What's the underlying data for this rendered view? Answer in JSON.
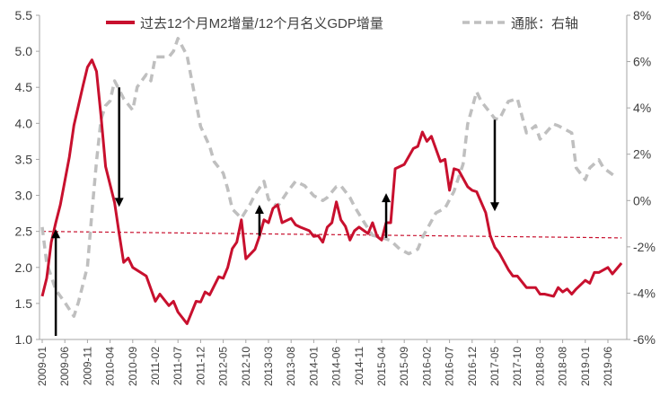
{
  "chart_data": {
    "type": "line",
    "title": "",
    "xlabel": "",
    "ylabel": "",
    "legend_position": "top",
    "grid": false,
    "colors": {
      "m2_ratio": "#c8102e",
      "inflation": "#bfbfbf",
      "arrows": "#000000",
      "reference_line": "#c8102e"
    },
    "x_range": [
      "2009-01",
      "2019-09"
    ],
    "x_tick_labels": [
      "2009-01",
      "2009-06",
      "2009-11",
      "2010-04",
      "2010-09",
      "2011-02",
      "2011-07",
      "2011-12",
      "2012-05",
      "2012-10",
      "2013-03",
      "2013-08",
      "2014-01",
      "2014-06",
      "2014-11",
      "2015-04",
      "2015-09",
      "2016-02",
      "2016-07",
      "2016-12",
      "2017-05",
      "2017-10",
      "2018-03",
      "2018-08",
      "2019-01",
      "2019-06"
    ],
    "left_axis": {
      "range": [
        1.0,
        5.5
      ],
      "tick_labels": [
        "1.0",
        "1.5",
        "2.0",
        "2.5",
        "3.0",
        "3.5",
        "4.0",
        "4.5",
        "5.0",
        "5.5"
      ]
    },
    "right_axis": {
      "range": [
        -6,
        8
      ],
      "tick_labels": [
        "-6%",
        "-4%",
        "-2%",
        "0%",
        "2%",
        "4%",
        "6%",
        "8%"
      ]
    },
    "series": [
      {
        "name": "过去12个月M2增量/12个月名义GDP增量",
        "axis": "left",
        "style": "solid",
        "points": [
          [
            "2009-01",
            1.6
          ],
          [
            "2009-02",
            1.85
          ],
          [
            "2009-03",
            2.35
          ],
          [
            "2009-04",
            2.62
          ],
          [
            "2009-05",
            2.87
          ],
          [
            "2009-07",
            3.53
          ],
          [
            "2009-08",
            3.97
          ],
          [
            "2009-10",
            4.52
          ],
          [
            "2009-11",
            4.78
          ],
          [
            "2009-12",
            4.88
          ],
          [
            "2010-01",
            4.72
          ],
          [
            "2010-02",
            4.1
          ],
          [
            "2010-03",
            3.4
          ],
          [
            "2010-05",
            2.9
          ],
          [
            "2010-06",
            2.47
          ],
          [
            "2010-07",
            2.07
          ],
          [
            "2010-08",
            2.13
          ],
          [
            "2010-09",
            2.0
          ],
          [
            "2010-12",
            1.88
          ],
          [
            "2011-02",
            1.53
          ],
          [
            "2011-03",
            1.63
          ],
          [
            "2011-05",
            1.47
          ],
          [
            "2011-06",
            1.53
          ],
          [
            "2011-07",
            1.38
          ],
          [
            "2011-09",
            1.22
          ],
          [
            "2011-11",
            1.53
          ],
          [
            "2011-12",
            1.52
          ],
          [
            "2012-01",
            1.66
          ],
          [
            "2012-02",
            1.62
          ],
          [
            "2012-04",
            1.87
          ],
          [
            "2012-05",
            1.85
          ],
          [
            "2012-06",
            2.0
          ],
          [
            "2012-07",
            2.26
          ],
          [
            "2012-08",
            2.35
          ],
          [
            "2012-09",
            2.66
          ],
          [
            "2012-10",
            2.12
          ],
          [
            "2012-12",
            2.25
          ],
          [
            "2013-01",
            2.43
          ],
          [
            "2013-02",
            2.66
          ],
          [
            "2013-03",
            2.62
          ],
          [
            "2013-04",
            2.82
          ],
          [
            "2013-05",
            2.87
          ],
          [
            "2013-06",
            2.62
          ],
          [
            "2013-08",
            2.68
          ],
          [
            "2013-09",
            2.59
          ],
          [
            "2013-10",
            2.56
          ],
          [
            "2013-12",
            2.51
          ],
          [
            "2014-01",
            2.43
          ],
          [
            "2014-02",
            2.44
          ],
          [
            "2014-03",
            2.35
          ],
          [
            "2014-04",
            2.56
          ],
          [
            "2014-05",
            2.62
          ],
          [
            "2014-06",
            2.91
          ],
          [
            "2014-07",
            2.66
          ],
          [
            "2014-08",
            2.57
          ],
          [
            "2014-09",
            2.38
          ],
          [
            "2014-10",
            2.51
          ],
          [
            "2014-11",
            2.56
          ],
          [
            "2015-01",
            2.47
          ],
          [
            "2015-02",
            2.62
          ],
          [
            "2015-03",
            2.43
          ],
          [
            "2015-04",
            2.38
          ],
          [
            "2015-05",
            2.62
          ],
          [
            "2015-06",
            2.62
          ],
          [
            "2015-07",
            3.37
          ],
          [
            "2015-09",
            3.43
          ],
          [
            "2015-11",
            3.65
          ],
          [
            "2015-12",
            3.68
          ],
          [
            "2016-01",
            3.88
          ],
          [
            "2016-02",
            3.75
          ],
          [
            "2016-03",
            3.82
          ],
          [
            "2016-05",
            3.47
          ],
          [
            "2016-06",
            3.5
          ],
          [
            "2016-07",
            3.07
          ],
          [
            "2016-08",
            3.37
          ],
          [
            "2016-09",
            3.35
          ],
          [
            "2016-11",
            3.12
          ],
          [
            "2016-12",
            3.07
          ],
          [
            "2017-01",
            3.05
          ],
          [
            "2017-03",
            2.76
          ],
          [
            "2017-04",
            2.44
          ],
          [
            "2017-05",
            2.28
          ],
          [
            "2017-06",
            2.2
          ],
          [
            "2017-08",
            1.97
          ],
          [
            "2017-09",
            1.88
          ],
          [
            "2017-10",
            1.88
          ],
          [
            "2017-12",
            1.72
          ],
          [
            "2018-02",
            1.72
          ],
          [
            "2018-03",
            1.63
          ],
          [
            "2018-04",
            1.63
          ],
          [
            "2018-06",
            1.6
          ],
          [
            "2018-07",
            1.72
          ],
          [
            "2018-08",
            1.66
          ],
          [
            "2018-09",
            1.7
          ],
          [
            "2018-10",
            1.63
          ],
          [
            "2018-11",
            1.7
          ],
          [
            "2019-01",
            1.82
          ],
          [
            "2019-02",
            1.78
          ],
          [
            "2019-03",
            1.93
          ],
          [
            "2019-04",
            1.93
          ],
          [
            "2019-06",
            2.0
          ],
          [
            "2019-07",
            1.91
          ],
          [
            "2019-09",
            2.06
          ]
        ]
      },
      {
        "name": "通胀：右轴",
        "axis": "right",
        "style": "dashed",
        "points": [
          [
            "2009-01",
            -1.15
          ],
          [
            "2009-02",
            -2.7
          ],
          [
            "2009-04",
            -3.86
          ],
          [
            "2009-06",
            -4.4
          ],
          [
            "2009-08",
            -5.0
          ],
          [
            "2009-09",
            -4.4
          ],
          [
            "2009-11",
            -2.85
          ],
          [
            "2009-12",
            -0.5
          ],
          [
            "2010-01",
            1.7
          ],
          [
            "2010-02",
            3.5
          ],
          [
            "2010-03",
            4.1
          ],
          [
            "2010-04",
            4.3
          ],
          [
            "2010-05",
            5.17
          ],
          [
            "2010-07",
            4.4
          ],
          [
            "2010-09",
            3.9
          ],
          [
            "2010-10",
            4.9
          ],
          [
            "2010-12",
            5.44
          ],
          [
            "2011-01",
            5.17
          ],
          [
            "2011-02",
            6.2
          ],
          [
            "2011-05",
            6.2
          ],
          [
            "2011-06",
            6.45
          ],
          [
            "2011-07",
            7.0
          ],
          [
            "2011-09",
            6.26
          ],
          [
            "2011-12",
            3.2
          ],
          [
            "2012-02",
            2.34
          ],
          [
            "2012-03",
            1.68
          ],
          [
            "2012-05",
            1.18
          ],
          [
            "2012-06",
            0.5
          ],
          [
            "2012-07",
            -0.37
          ],
          [
            "2012-09",
            -0.76
          ],
          [
            "2012-11",
            -0.14
          ],
          [
            "2012-12",
            0.25
          ],
          [
            "2013-02",
            0.83
          ],
          [
            "2013-03",
            0.05
          ],
          [
            "2013-05",
            -0.26
          ],
          [
            "2013-07",
            0.33
          ],
          [
            "2013-09",
            0.83
          ],
          [
            "2013-11",
            0.64
          ],
          [
            "2014-01",
            0.21
          ],
          [
            "2014-03",
            0.0
          ],
          [
            "2014-04",
            0.13
          ],
          [
            "2014-06",
            0.6
          ],
          [
            "2014-07",
            0.64
          ],
          [
            "2014-09",
            0.13
          ],
          [
            "2014-10",
            -0.26
          ],
          [
            "2014-12",
            -0.9
          ],
          [
            "2015-02",
            -1.5
          ],
          [
            "2015-04",
            -1.6
          ],
          [
            "2015-06",
            -1.73
          ],
          [
            "2015-08",
            -2.1
          ],
          [
            "2015-10",
            -2.3
          ],
          [
            "2015-12",
            -2.1
          ],
          [
            "2016-01",
            -1.6
          ],
          [
            "2016-04",
            -0.53
          ],
          [
            "2016-06",
            -0.33
          ],
          [
            "2016-08",
            0.4
          ],
          [
            "2016-10",
            1.57
          ],
          [
            "2016-11",
            3.3
          ],
          [
            "2017-01",
            4.7
          ],
          [
            "2017-02",
            4.28
          ],
          [
            "2017-05",
            3.54
          ],
          [
            "2017-06",
            3.5
          ],
          [
            "2017-08",
            4.28
          ],
          [
            "2017-10",
            4.4
          ],
          [
            "2017-12",
            2.92
          ],
          [
            "2018-02",
            3.23
          ],
          [
            "2018-03",
            2.65
          ],
          [
            "2018-06",
            3.3
          ],
          [
            "2018-07",
            3.23
          ],
          [
            "2018-10",
            2.92
          ],
          [
            "2018-11",
            1.41
          ],
          [
            "2019-01",
            0.9
          ],
          [
            "2019-02",
            1.41
          ],
          [
            "2019-04",
            1.76
          ],
          [
            "2019-05",
            1.41
          ],
          [
            "2019-08",
            0.98
          ]
        ]
      }
    ],
    "reference_line": {
      "axis": "left",
      "start": [
        "2009-01",
        2.5
      ],
      "end": [
        "2019-09",
        2.41
      ],
      "style": "dashed"
    },
    "arrows": [
      {
        "x": "2009-04",
        "from": 1.05,
        "to": 2.53,
        "direction": "up"
      },
      {
        "x": "2010-06",
        "from": 4.5,
        "to": 2.84,
        "direction": "down"
      },
      {
        "x": "2013-01",
        "from": 2.44,
        "to": 2.87,
        "direction": "up"
      },
      {
        "x": "2015-05",
        "from": 2.41,
        "to": 3.03,
        "direction": "up"
      },
      {
        "x": "2017-05",
        "from": 4.05,
        "to": 2.78,
        "direction": "down"
      }
    ]
  }
}
